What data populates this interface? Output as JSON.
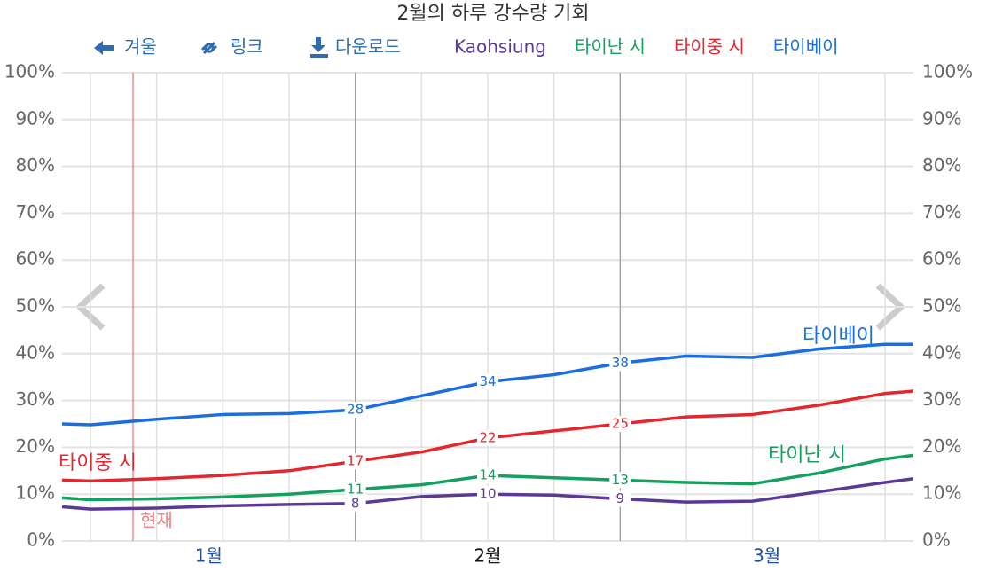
{
  "toolbar": {
    "back": "겨울",
    "link": "링크",
    "download": "다운로드"
  },
  "chart_data": {
    "type": "line",
    "title": "2월의 하루 강수량 기회",
    "x": [
      0,
      3,
      10,
      17,
      24,
      31,
      38,
      45,
      52,
      59,
      66,
      73,
      80,
      87,
      90
    ],
    "xlim": [
      0,
      90
    ],
    "xticks": [
      {
        "value": 15.5,
        "label": "1월"
      },
      {
        "value": 45,
        "label": "2월"
      },
      {
        "value": 74.5,
        "label": "3월"
      }
    ],
    "month_boundaries": [
      31,
      59
    ],
    "now_marker": {
      "label": "현재",
      "x": 7.5
    },
    "data_labels_x": [
      31,
      45,
      59
    ],
    "ylim": [
      0,
      100
    ],
    "yticks": [
      {
        "value": 0,
        "label": "0%"
      },
      {
        "value": 10,
        "label": "10%"
      },
      {
        "value": 20,
        "label": "20%"
      },
      {
        "value": 30,
        "label": "30%"
      },
      {
        "value": 40,
        "label": "40%"
      },
      {
        "value": 50,
        "label": "50%"
      },
      {
        "value": 60,
        "label": "60%"
      },
      {
        "value": 70,
        "label": "70%"
      },
      {
        "value": 80,
        "label": "80%"
      },
      {
        "value": 90,
        "label": "90%"
      },
      {
        "value": 100,
        "label": "100%"
      }
    ],
    "grid": true,
    "series": [
      {
        "name": "Kaohsiung",
        "color": "#5b3a96",
        "values": [
          7.3,
          6.8,
          7,
          7.5,
          7.8,
          8,
          9.5,
          10,
          9.8,
          9,
          8.3,
          8.5,
          10.5,
          12.5,
          13.3
        ]
      },
      {
        "name": "타이난 시",
        "color": "#14a05e",
        "values": [
          9.2,
          8.8,
          9,
          9.4,
          10,
          11,
          12,
          14,
          13.5,
          13,
          12.5,
          12.2,
          14.5,
          17.5,
          18.3
        ]
      },
      {
        "name": "타이중 시",
        "color": "#e0282e",
        "values": [
          13,
          12.8,
          13.3,
          14,
          15,
          17,
          19,
          22,
          23.5,
          25,
          26.5,
          27,
          29,
          31.5,
          32
        ]
      },
      {
        "name": "타이베이",
        "color": "#1a6ee0",
        "values": [
          25,
          24.8,
          26,
          27,
          27.2,
          28,
          31,
          34,
          35.5,
          38,
          39.5,
          39.2,
          41,
          42,
          42
        ]
      }
    ]
  }
}
